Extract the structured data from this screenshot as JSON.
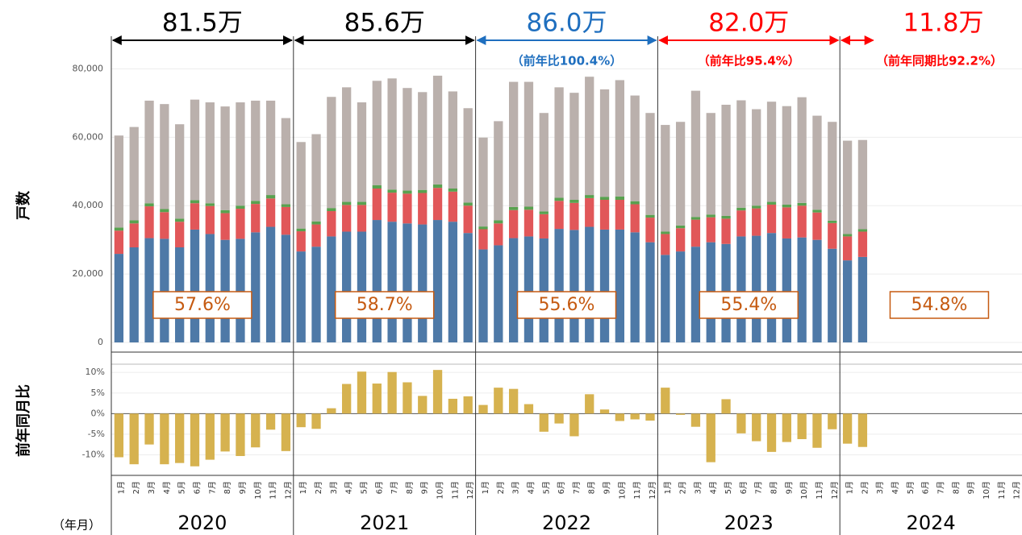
{
  "chart_data": [
    {
      "type": "stacked-bar",
      "y_title": "戸数",
      "x_title": "（年月）",
      "categories": [
        "1月",
        "2月",
        "3月",
        "4月",
        "5月",
        "6月",
        "7月",
        "8月",
        "9月",
        "10月",
        "11月",
        "12月",
        "1月",
        "2月",
        "3月",
        "4月",
        "5月",
        "6月",
        "7月",
        "8月",
        "9月",
        "10月",
        "11月",
        "12月",
        "1月",
        "2月",
        "3月",
        "4月",
        "5月",
        "6月",
        "7月",
        "8月",
        "9月",
        "10月",
        "11月",
        "12月",
        "1月",
        "2月",
        "3月",
        "4月",
        "5月",
        "6月",
        "7月",
        "8月",
        "9月",
        "10月",
        "11月",
        "12月",
        "1月",
        "2月",
        "3月",
        "4月",
        "5月",
        "6月",
        "7月",
        "8月",
        "9月",
        "10月",
        "11月",
        "12月"
      ],
      "years": [
        "2020",
        "2021",
        "2022",
        "2023",
        "2024"
      ],
      "series": [
        {
          "color": "#4e79a7",
          "values": [
            25900,
            27800,
            30500,
            30300,
            27800,
            33000,
            31700,
            30000,
            30300,
            32200,
            33800,
            31500,
            26600,
            28000,
            31000,
            32400,
            32400,
            35800,
            35300,
            34800,
            34500,
            35800,
            35300,
            32000,
            27200,
            28400,
            30500,
            31000,
            30400,
            33200,
            32900,
            33800,
            33000,
            33000,
            32200,
            29300,
            25600,
            26600,
            28000,
            29300,
            28800,
            31000,
            31200,
            32000,
            30400,
            30700,
            30000,
            27400,
            24000,
            25000,
            null,
            null,
            null,
            null,
            null,
            null,
            null,
            null,
            null,
            null
          ]
        },
        {
          "color": "#e15759",
          "values": [
            6800,
            7000,
            9300,
            7800,
            7500,
            7700,
            8200,
            7800,
            8800,
            8300,
            8300,
            8100,
            5900,
            6500,
            7400,
            7800,
            7800,
            9200,
            8500,
            8700,
            9200,
            9400,
            8800,
            8000,
            5900,
            6400,
            8200,
            7800,
            7100,
            8200,
            7900,
            8400,
            8700,
            8700,
            8200,
            7200,
            6100,
            6800,
            7900,
            7300,
            7400,
            7600,
            8000,
            8300,
            9100,
            9300,
            8000,
            7500,
            7000,
            7400,
            null,
            null,
            null,
            null,
            null,
            null,
            null,
            null,
            null,
            null
          ]
        },
        {
          "color": "#59a14f",
          "values": [
            900,
            900,
            900,
            900,
            900,
            900,
            800,
            900,
            900,
            900,
            1000,
            800,
            800,
            900,
            900,
            900,
            900,
            1000,
            900,
            900,
            900,
            1000,
            900,
            900,
            800,
            900,
            900,
            900,
            800,
            900,
            900,
            900,
            900,
            1000,
            900,
            800,
            700,
            800,
            800,
            800,
            800,
            800,
            800,
            800,
            800,
            800,
            800,
            700,
            700,
            700,
            null,
            null,
            null,
            null,
            null,
            null,
            null,
            null,
            null,
            null
          ]
        },
        {
          "color": "#bab0ac",
          "values": [
            26900,
            27300,
            30000,
            30700,
            27600,
            29400,
            29500,
            30300,
            30200,
            29300,
            27600,
            25200,
            25300,
            25500,
            32500,
            33500,
            29100,
            30500,
            32500,
            30000,
            28600,
            31800,
            28400,
            27600,
            26000,
            29000,
            36600,
            36500,
            28800,
            32300,
            31300,
            34600,
            31400,
            34000,
            30900,
            29800,
            31200,
            30300,
            36900,
            29700,
            32500,
            31400,
            28200,
            29300,
            28800,
            30900,
            27500,
            28900,
            27300,
            26100,
            null,
            null,
            null,
            null,
            null,
            null,
            null,
            null,
            null,
            null
          ]
        }
      ],
      "ylim": [
        0,
        90000
      ],
      "yticks": [
        0,
        {
          "value": 20000,
          "label": "20,000"
        },
        {
          "value": 40000,
          "label": "40,000"
        },
        {
          "value": 60000,
          "label": "60,000"
        },
        {
          "value": 80000,
          "label": "80,000"
        }
      ],
      "grid": true,
      "totals": [
        {
          "label": "81.5万",
          "color": "#000000"
        },
        {
          "label": "85.6万",
          "color": "#000000"
        },
        {
          "label": "86.0万",
          "note": "（前年比100.4%）",
          "color": "#1f6fbf"
        },
        {
          "label": "82.0万",
          "note": "（前年比95.4%）",
          "color": "#ff0000"
        },
        {
          "label": "11.8万",
          "note": "（前年同期比92.2%）",
          "color": "#ff0000"
        }
      ],
      "ratio_labels": [
        "57.6%",
        "58.7%",
        "55.6%",
        "55.4%",
        "54.8%"
      ],
      "ratio_color": "#c55a11"
    },
    {
      "type": "bar",
      "y_title": "前年同月比",
      "color": "#d6b24f",
      "values": [
        -10.6,
        -12.3,
        -7.5,
        -12.3,
        -12.0,
        -12.8,
        -11.2,
        -9.2,
        -10.3,
        -8.2,
        -3.9,
        -9.1,
        -3.3,
        -3.7,
        1.3,
        7.2,
        10.2,
        7.3,
        10.1,
        7.6,
        4.3,
        10.6,
        3.6,
        4.2,
        2.1,
        6.3,
        6.0,
        2.3,
        -4.4,
        -2.4,
        -5.5,
        4.7,
        1.0,
        -1.8,
        -1.4,
        -1.7,
        6.3,
        -0.3,
        -3.2,
        -11.8,
        3.5,
        -4.8,
        -6.7,
        -9.3,
        -6.9,
        -6.2,
        -8.3,
        -3.8,
        -7.3,
        -8.1,
        null,
        null,
        null,
        null,
        null,
        null,
        null,
        null,
        null,
        null
      ],
      "ylim": [
        -15,
        12
      ],
      "yticks": [
        {
          "value": 10,
          "label": "10%"
        },
        {
          "value": 5,
          "label": "5%"
        },
        {
          "value": 0,
          "label": "0%"
        },
        {
          "value": -5,
          "label": "-5%"
        },
        {
          "value": -10,
          "label": "-10%"
        }
      ],
      "grid": true
    }
  ]
}
